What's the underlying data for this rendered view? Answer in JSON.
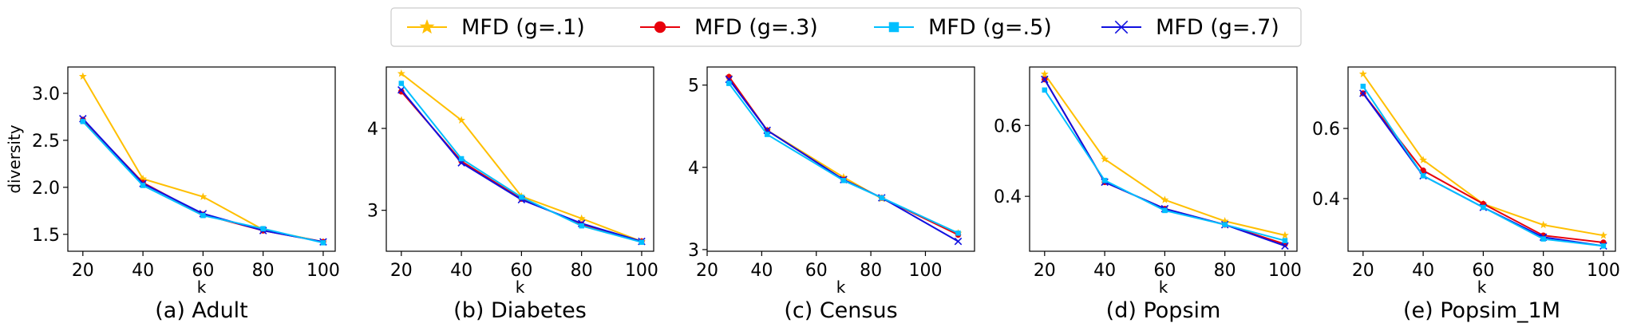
{
  "legend": {
    "entries": [
      {
        "label": "MFD (g=.1)",
        "color": "#FFBF00",
        "marker": "star"
      },
      {
        "label": "MFD (g=.3)",
        "color": "#E8000B",
        "marker": "circle"
      },
      {
        "label": "MFD (g=.5)",
        "color": "#00BFFF",
        "marker": "square"
      },
      {
        "label": "MFD (g=.7)",
        "color": "#1010E0",
        "marker": "x"
      }
    ],
    "placement": "top-center"
  },
  "chart_data": [
    {
      "type": "line",
      "caption": "(a) Adult",
      "xlabel": "k",
      "ylabel": "diversity",
      "xlim": [
        15,
        104
      ],
      "ylim": [
        1.32,
        3.28
      ],
      "xticks": [
        20,
        40,
        60,
        80,
        100
      ],
      "yticks": [
        1.5,
        2.0,
        2.5,
        3.0
      ],
      "ytick_labels": [
        "1.5",
        "2.0",
        "2.5",
        "3.0"
      ],
      "x": [
        20,
        40,
        60,
        80,
        100
      ],
      "series": [
        {
          "name": "MFD (g=.1)",
          "values": [
            3.18,
            2.09,
            1.9,
            1.55,
            1.42
          ]
        },
        {
          "name": "MFD (g=.3)",
          "values": [
            2.72,
            2.05,
            1.71,
            1.54,
            1.42
          ]
        },
        {
          "name": "MFD (g=.5)",
          "values": [
            2.7,
            2.02,
            1.7,
            1.56,
            1.41
          ]
        },
        {
          "name": "MFD (g=.7)",
          "values": [
            2.73,
            2.04,
            1.72,
            1.54,
            1.42
          ]
        }
      ]
    },
    {
      "type": "line",
      "caption": "(b) Diabetes",
      "xlabel": "k",
      "ylabel": "",
      "xlim": [
        15,
        104
      ],
      "ylim": [
        2.5,
        4.75
      ],
      "xticks": [
        20,
        40,
        60,
        80,
        100
      ],
      "yticks": [
        3,
        4
      ],
      "ytick_labels": [
        "3",
        "4"
      ],
      "x": [
        20,
        40,
        60,
        80,
        100
      ],
      "series": [
        {
          "name": "MFD (g=.1)",
          "values": [
            4.67,
            4.1,
            3.17,
            2.9,
            2.62
          ]
        },
        {
          "name": "MFD (g=.3)",
          "values": [
            4.45,
            3.6,
            3.14,
            2.83,
            2.62
          ]
        },
        {
          "name": "MFD (g=.5)",
          "values": [
            4.55,
            3.63,
            3.16,
            2.81,
            2.61
          ]
        },
        {
          "name": "MFD (g=.7)",
          "values": [
            4.47,
            3.58,
            3.13,
            2.84,
            2.62
          ]
        }
      ]
    },
    {
      "type": "line",
      "caption": "(c) Census",
      "xlabel": "k",
      "ylabel": "",
      "xlim": [
        20,
        118
      ],
      "ylim": [
        2.98,
        5.22
      ],
      "xticks": [
        20,
        40,
        60,
        80,
        100
      ],
      "yticks": [
        3,
        4,
        5
      ],
      "ytick_labels": [
        "3",
        "4",
        "5"
      ],
      "x": [
        28,
        42,
        70,
        84,
        112
      ],
      "series": [
        {
          "name": "MFD (g=.1)",
          "values": [
            5.1,
            4.45,
            3.88,
            3.62,
            3.2
          ]
        },
        {
          "name": "MFD (g=.3)",
          "values": [
            5.1,
            4.45,
            3.85,
            3.63,
            3.18
          ]
        },
        {
          "name": "MFD (g=.5)",
          "values": [
            5.02,
            4.4,
            3.84,
            3.63,
            3.2
          ]
        },
        {
          "name": "MFD (g=.7)",
          "values": [
            5.07,
            4.45,
            3.85,
            3.63,
            3.1
          ]
        }
      ]
    },
    {
      "type": "line",
      "caption": "(d) Popsim",
      "xlabel": "k",
      "ylabel": "",
      "xlim": [
        15,
        104
      ],
      "ylim": [
        0.245,
        0.765
      ],
      "xticks": [
        20,
        40,
        60,
        80,
        100
      ],
      "yticks": [
        0.4,
        0.6
      ],
      "ytick_labels": [
        "0.4",
        "0.6"
      ],
      "x": [
        20,
        40,
        60,
        80,
        100
      ],
      "series": [
        {
          "name": "MFD (g=.1)",
          "values": [
            0.745,
            0.505,
            0.39,
            0.33,
            0.29
          ]
        },
        {
          "name": "MFD (g=.3)",
          "values": [
            0.73,
            0.44,
            0.365,
            0.32,
            0.265
          ]
        },
        {
          "name": "MFD (g=.5)",
          "values": [
            0.7,
            0.445,
            0.36,
            0.32,
            0.275
          ]
        },
        {
          "name": "MFD (g=.7)",
          "values": [
            0.73,
            0.44,
            0.365,
            0.32,
            0.26
          ]
        }
      ]
    },
    {
      "type": "line",
      "caption": "(e) Popsim_1M",
      "xlabel": "k",
      "ylabel": "",
      "xlim": [
        15,
        104
      ],
      "ylim": [
        0.25,
        0.775
      ],
      "xticks": [
        20,
        40,
        60,
        80,
        100
      ],
      "yticks": [
        0.4,
        0.6
      ],
      "ytick_labels": [
        "0.4",
        "0.6"
      ],
      "x": [
        20,
        40,
        60,
        80,
        100
      ],
      "series": [
        {
          "name": "MFD (g=.1)",
          "values": [
            0.755,
            0.51,
            0.385,
            0.325,
            0.295
          ]
        },
        {
          "name": "MFD (g=.3)",
          "values": [
            0.7,
            0.48,
            0.385,
            0.295,
            0.275
          ]
        },
        {
          "name": "MFD (g=.5)",
          "values": [
            0.72,
            0.465,
            0.375,
            0.285,
            0.265
          ]
        },
        {
          "name": "MFD (g=.7)",
          "values": [
            0.7,
            0.465,
            0.375,
            0.29,
            0.265
          ]
        }
      ]
    }
  ]
}
